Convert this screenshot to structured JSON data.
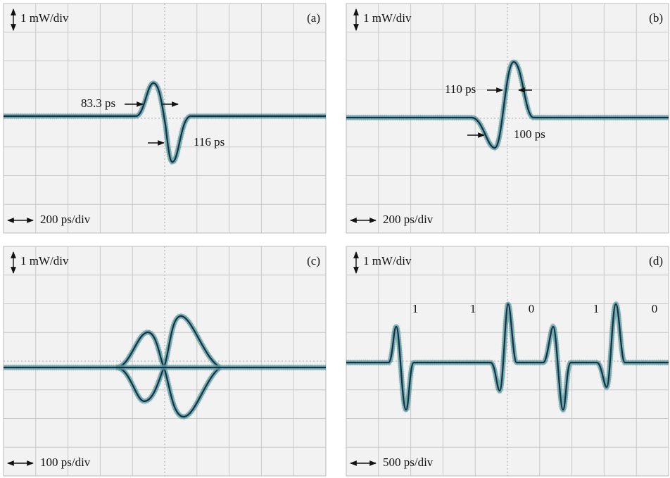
{
  "panels": [
    {
      "label": "(a)",
      "y_scale": "1 mW/div",
      "x_scale": "200 ps/div",
      "annotations": [
        "83.3 ps",
        "116 ps"
      ]
    },
    {
      "label": "(b)",
      "y_scale": "1 mW/div",
      "x_scale": "200 ps/div",
      "annotations": [
        "110 ps",
        "100 ps"
      ]
    },
    {
      "label": "(c)",
      "y_scale": "1 mW/div",
      "x_scale": "100 ps/div",
      "annotations": []
    },
    {
      "label": "(d)",
      "y_scale": "1 mW/div",
      "x_scale": "500 ps/div",
      "annotations": [
        "1",
        "1",
        "0",
        "1",
        "0"
      ]
    }
  ]
}
